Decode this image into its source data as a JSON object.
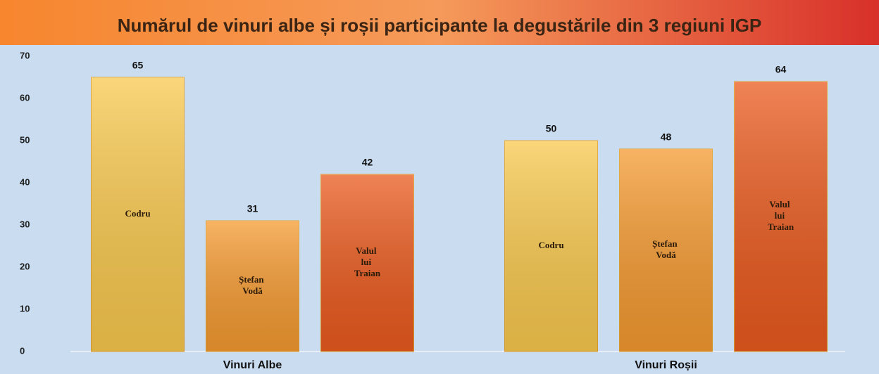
{
  "chart_data": {
    "type": "bar",
    "title": "Numărul de vinuri albe și roșii participante la degustările din 3 regiuni IGP",
    "categories": [
      "Vinuri Albe",
      "Vinuri Roșii"
    ],
    "series": [
      {
        "name": "Codru",
        "color": "#f9c94e",
        "values": [
          65,
          50
        ]
      },
      {
        "name": "Ștefan Vodă",
        "color": "#f59a30",
        "values": [
          31,
          48
        ]
      },
      {
        "name": "Valul lui Traian",
        "color": "#ea5a1e",
        "values": [
          42,
          64
        ]
      }
    ],
    "ylim": [
      0,
      70
    ],
    "yticks": [
      0,
      10,
      20,
      30,
      40,
      50,
      60,
      70
    ],
    "grid": false
  }
}
